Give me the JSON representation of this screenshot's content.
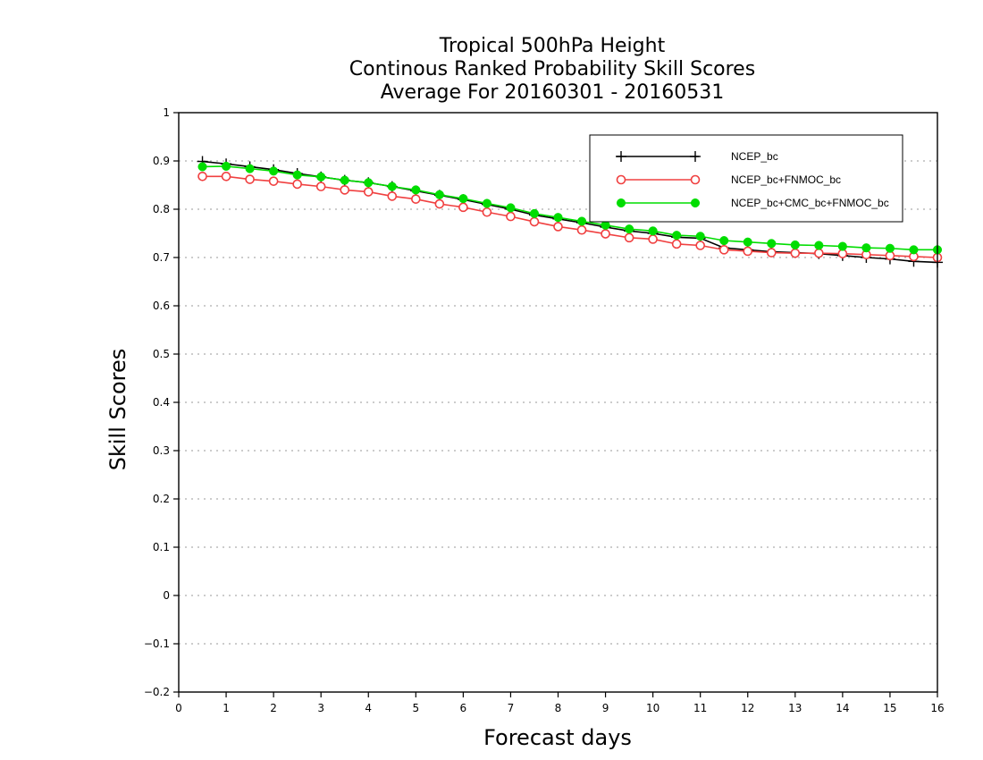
{
  "chart_data": {
    "type": "line",
    "title": [
      "Tropical 500hPa Height",
      "Continous Ranked Probability Skill Scores",
      "Average For 20160301 - 20160531"
    ],
    "xlabel": "Forecast days",
    "ylabel": "Skill Scores",
    "xlim": [
      0,
      16
    ],
    "ylim": [
      -0.2,
      1
    ],
    "x_ticks": [
      0,
      1,
      2,
      3,
      4,
      5,
      6,
      7,
      8,
      9,
      10,
      11,
      12,
      13,
      14,
      15,
      16
    ],
    "x_tick_labels": [
      "0",
      "1",
      "2",
      "3",
      "4",
      "5",
      "6",
      "7",
      "8",
      "9",
      "10",
      "11",
      "12",
      "13",
      "14",
      "15",
      "16"
    ],
    "y_ticks": [
      -0.2,
      -0.1,
      0,
      0.1,
      0.2,
      0.3,
      0.4,
      0.5,
      0.6,
      0.7,
      0.8,
      0.9,
      1
    ],
    "y_tick_labels": [
      "−0.2",
      "−0.1",
      "0",
      "0.1",
      "0.2",
      "0.3",
      "0.4",
      "0.5",
      "0.6",
      "0.7",
      "0.8",
      "0.9",
      "1"
    ],
    "grid": "horizontal dotted",
    "legend_position": "top-right",
    "x": [
      0.5,
      1,
      1.5,
      2,
      2.5,
      3,
      3.5,
      4,
      4.5,
      5,
      5.5,
      6,
      6.5,
      7,
      7.5,
      8,
      8.5,
      9,
      9.5,
      10,
      10.5,
      11,
      11.5,
      12,
      12.5,
      13,
      13.5,
      14,
      14.5,
      15,
      15.5,
      16
    ],
    "series": [
      {
        "name": "NCEP_bc",
        "color": "#000000",
        "marker": "plus",
        "values": [
          0.899,
          0.894,
          0.888,
          0.882,
          0.874,
          0.867,
          0.86,
          0.855,
          0.847,
          0.838,
          0.829,
          0.82,
          0.81,
          0.8,
          0.788,
          0.78,
          0.772,
          0.763,
          0.755,
          0.75,
          0.742,
          0.74,
          0.72,
          0.716,
          0.712,
          0.71,
          0.708,
          0.704,
          0.7,
          0.697,
          0.692,
          0.69
        ]
      },
      {
        "name": "NCEP_bc+FNMOC_bc",
        "color": "#f04040",
        "marker": "open-circle",
        "values": [
          0.868,
          0.868,
          0.862,
          0.858,
          0.852,
          0.847,
          0.84,
          0.836,
          0.827,
          0.821,
          0.811,
          0.804,
          0.794,
          0.785,
          0.774,
          0.764,
          0.757,
          0.749,
          0.741,
          0.738,
          0.728,
          0.725,
          0.716,
          0.713,
          0.71,
          0.709,
          0.709,
          0.708,
          0.706,
          0.704,
          0.702,
          0.7
        ]
      },
      {
        "name": "NCEP_bc+CMC_bc+FNMOC_bc",
        "color": "#00dd00",
        "marker": "filled-circle",
        "values": [
          0.888,
          0.889,
          0.884,
          0.879,
          0.871,
          0.867,
          0.86,
          0.855,
          0.847,
          0.84,
          0.83,
          0.822,
          0.812,
          0.803,
          0.791,
          0.783,
          0.775,
          0.767,
          0.759,
          0.755,
          0.746,
          0.744,
          0.735,
          0.732,
          0.729,
          0.726,
          0.725,
          0.723,
          0.72,
          0.719,
          0.716,
          0.716
        ]
      }
    ]
  }
}
